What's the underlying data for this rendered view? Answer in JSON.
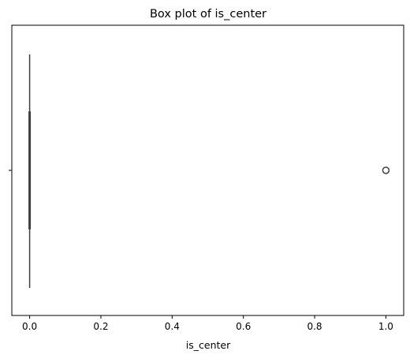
{
  "chart_data": {
    "type": "box",
    "title": "Box plot of is_center",
    "xlabel": "is_center",
    "ylabel": "",
    "orientation": "horizontal",
    "xlim": [
      -0.05,
      1.05
    ],
    "xticks": [
      0.0,
      0.2,
      0.4,
      0.6,
      0.8,
      1.0
    ],
    "xtick_labels": [
      "0.0",
      "0.2",
      "0.4",
      "0.6",
      "0.8",
      "1.0"
    ],
    "box": {
      "min": 0.0,
      "q1": 0.0,
      "median": 0.0,
      "q3": 0.0,
      "max": 0.0,
      "outliers": [
        1.0
      ]
    },
    "grid": false,
    "colors": {
      "box_line": "#3f3f3f",
      "outlier": "#3f3f3f",
      "axes": "#000000"
    }
  }
}
